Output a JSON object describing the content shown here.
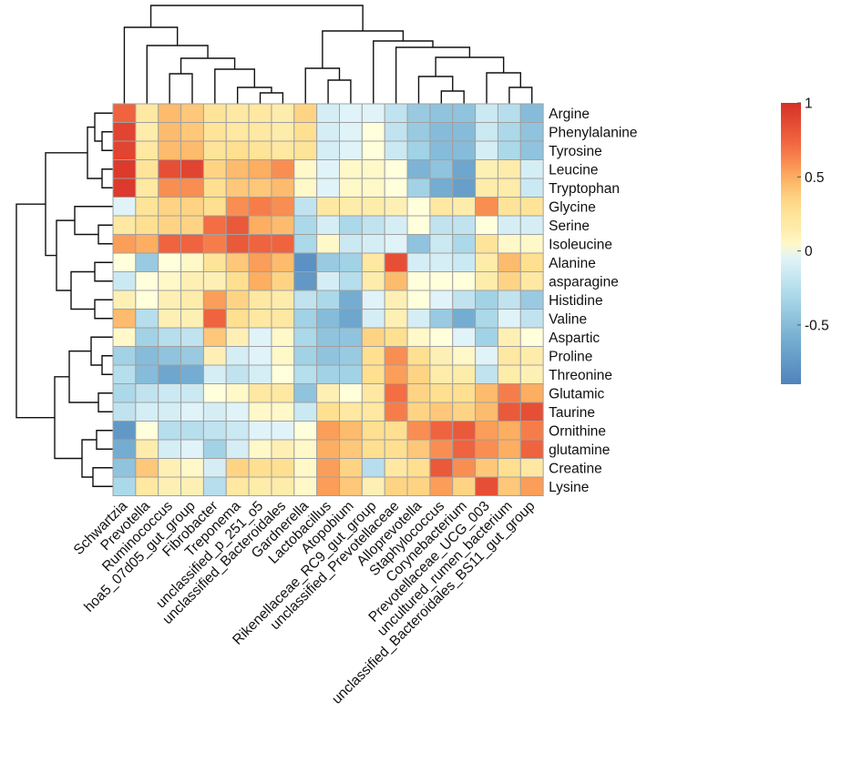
{
  "chart_data": {
    "type": "heatmap",
    "title": "",
    "rows": [
      "Argine",
      "Phenylalanine",
      "Tyrosine",
      "Leucine",
      "Tryptophan",
      "Glycine",
      "Serine",
      "Isoleucine",
      "Alanine",
      "asparagine",
      "Histidine",
      "Valine",
      "Aspartic",
      "Proline",
      "Threonine",
      "Glutamic",
      "Taurine",
      "Ornithine",
      "glutamine",
      "Creatine",
      "Lysine"
    ],
    "columns": [
      "Schwartzia",
      "Prevotella",
      "Ruminococcus",
      "hoa5_07d05_gut_group",
      "Fibrobacter",
      "Treponema",
      "unclassified_p_251_o5",
      "unclassified_Bacteroidales",
      "Gardnerella",
      "Lactobacillus",
      "Atopobium",
      "Rikenellaceae_RC9_gut_group",
      "unclassified_Prevotellaceae",
      "Alloprevotella",
      "Staphylococcus",
      "Corynebacterium",
      "Prevotellaceae_UCG_003",
      "uncultured_rumen_bacterium",
      "unclassified_Bacteroidales_BS11_gut_group"
    ],
    "values": [
      [
        0.75,
        0.2,
        0.45,
        0.4,
        0.25,
        0.2,
        0.2,
        0.15,
        0.35,
        -0.1,
        -0.05,
        -0.05,
        -0.2,
        -0.4,
        -0.45,
        -0.45,
        -0.15,
        -0.25,
        -0.5
      ],
      [
        0.9,
        0.15,
        0.45,
        0.4,
        0.25,
        0.2,
        0.2,
        0.15,
        0.3,
        -0.1,
        -0.05,
        0.0,
        -0.2,
        -0.4,
        -0.5,
        -0.5,
        -0.15,
        -0.3,
        -0.45
      ],
      [
        0.9,
        0.2,
        0.45,
        0.45,
        0.25,
        0.3,
        0.25,
        0.2,
        0.25,
        -0.1,
        -0.05,
        0.0,
        -0.15,
        -0.35,
        -0.5,
        -0.5,
        -0.1,
        -0.3,
        -0.45
      ],
      [
        0.95,
        0.25,
        0.85,
        0.9,
        0.35,
        0.45,
        0.5,
        0.6,
        0.05,
        -0.05,
        0.05,
        0.05,
        0.0,
        -0.55,
        -0.45,
        -0.65,
        0.1,
        0.15,
        -0.1
      ],
      [
        0.95,
        0.2,
        0.6,
        0.6,
        0.3,
        0.4,
        0.4,
        0.45,
        0.05,
        -0.05,
        0.05,
        0.05,
        0.0,
        -0.35,
        -0.6,
        -0.7,
        0.15,
        0.15,
        -0.15
      ],
      [
        -0.05,
        0.25,
        0.35,
        0.35,
        0.3,
        0.6,
        0.65,
        0.6,
        -0.2,
        0.2,
        0.15,
        0.15,
        0.1,
        0.0,
        0.2,
        0.15,
        0.6,
        0.25,
        0.25
      ],
      [
        0.2,
        0.3,
        0.35,
        0.35,
        0.7,
        0.8,
        0.5,
        0.45,
        -0.3,
        -0.1,
        -0.3,
        -0.2,
        -0.1,
        0.0,
        -0.2,
        -0.2,
        0.0,
        -0.1,
        -0.1
      ],
      [
        0.55,
        0.5,
        0.75,
        0.75,
        0.65,
        0.8,
        0.75,
        0.75,
        -0.3,
        0.05,
        -0.15,
        -0.1,
        -0.05,
        -0.45,
        -0.15,
        -0.3,
        0.25,
        0.05,
        0.05
      ],
      [
        0.0,
        -0.4,
        0.0,
        0.05,
        0.25,
        0.4,
        0.55,
        0.45,
        -0.8,
        -0.4,
        -0.35,
        0.2,
        0.85,
        -0.1,
        -0.1,
        -0.15,
        0.15,
        0.45,
        0.3
      ],
      [
        -0.15,
        0.0,
        0.05,
        0.1,
        0.1,
        0.3,
        0.5,
        0.35,
        -0.75,
        -0.1,
        -0.25,
        0.15,
        0.45,
        0.0,
        0.0,
        0.0,
        0.15,
        0.35,
        0.2
      ],
      [
        0.1,
        0.0,
        0.1,
        0.15,
        0.55,
        0.35,
        0.2,
        0.15,
        -0.2,
        -0.3,
        -0.6,
        -0.05,
        0.1,
        0.0,
        -0.05,
        -0.2,
        -0.35,
        -0.2,
        -0.4
      ],
      [
        0.45,
        -0.25,
        0.1,
        0.1,
        0.75,
        0.3,
        0.2,
        0.2,
        -0.35,
        -0.5,
        -0.65,
        -0.1,
        0.1,
        -0.1,
        -0.4,
        -0.6,
        -0.3,
        -0.05,
        -0.2
      ],
      [
        0.05,
        -0.35,
        -0.25,
        -0.2,
        0.4,
        0.1,
        -0.05,
        0.05,
        -0.3,
        -0.45,
        -0.45,
        0.35,
        0.3,
        0.05,
        0.0,
        -0.05,
        -0.35,
        0.1,
        0.0
      ],
      [
        -0.35,
        -0.5,
        -0.45,
        -0.4,
        0.1,
        -0.1,
        -0.05,
        0.05,
        -0.35,
        -0.45,
        -0.4,
        0.3,
        0.6,
        0.3,
        0.1,
        0.05,
        -0.05,
        0.2,
        0.15
      ],
      [
        -0.25,
        -0.5,
        -0.65,
        -0.6,
        -0.1,
        -0.2,
        -0.1,
        0.0,
        -0.25,
        -0.35,
        -0.35,
        0.3,
        0.55,
        0.35,
        0.15,
        0.15,
        -0.2,
        0.15,
        0.1
      ],
      [
        -0.3,
        -0.2,
        -0.15,
        -0.15,
        0.0,
        0.05,
        0.2,
        0.2,
        -0.45,
        0.1,
        0.0,
        0.2,
        0.7,
        0.35,
        0.3,
        0.3,
        0.45,
        0.65,
        0.5
      ],
      [
        -0.2,
        -0.1,
        -0.1,
        -0.05,
        -0.1,
        -0.05,
        0.05,
        0.05,
        -0.15,
        0.3,
        0.2,
        0.2,
        0.65,
        0.35,
        0.4,
        0.35,
        0.45,
        0.8,
        0.85
      ],
      [
        -0.75,
        0.0,
        -0.25,
        -0.25,
        -0.2,
        -0.15,
        -0.05,
        -0.05,
        0.0,
        0.55,
        0.45,
        0.3,
        0.3,
        0.6,
        0.75,
        0.8,
        0.55,
        0.5,
        0.65
      ],
      [
        -0.6,
        0.15,
        -0.1,
        -0.05,
        -0.35,
        -0.1,
        0.05,
        0.1,
        0.05,
        0.5,
        0.4,
        0.3,
        0.3,
        0.4,
        0.6,
        0.75,
        0.6,
        0.5,
        0.75
      ],
      [
        -0.45,
        0.4,
        0.1,
        0.05,
        -0.1,
        0.35,
        0.3,
        0.3,
        0.05,
        0.55,
        0.35,
        -0.25,
        0.2,
        0.3,
        0.8,
        0.6,
        0.4,
        0.3,
        0.2
      ],
      [
        -0.3,
        0.2,
        0.1,
        0.1,
        -0.25,
        0.2,
        0.15,
        0.15,
        0.05,
        0.55,
        0.4,
        0.1,
        0.35,
        0.35,
        0.55,
        0.35,
        0.85,
        0.4,
        0.55
      ]
    ],
    "legend": {
      "ticks": [
        1,
        0.5,
        0,
        -0.5
      ],
      "tick_labels": [
        "1",
        "0.5",
        "0",
        "-0.5"
      ],
      "min": -0.9,
      "max": 1.0
    },
    "colors": {
      "low": "#4575b4",
      "mid_low": "#abd9e9",
      "mid": "#ffffbf",
      "mid_high": "#fdae61",
      "high": "#d73027",
      "grid": "#a0a0a0"
    },
    "legend_placement": "right"
  }
}
